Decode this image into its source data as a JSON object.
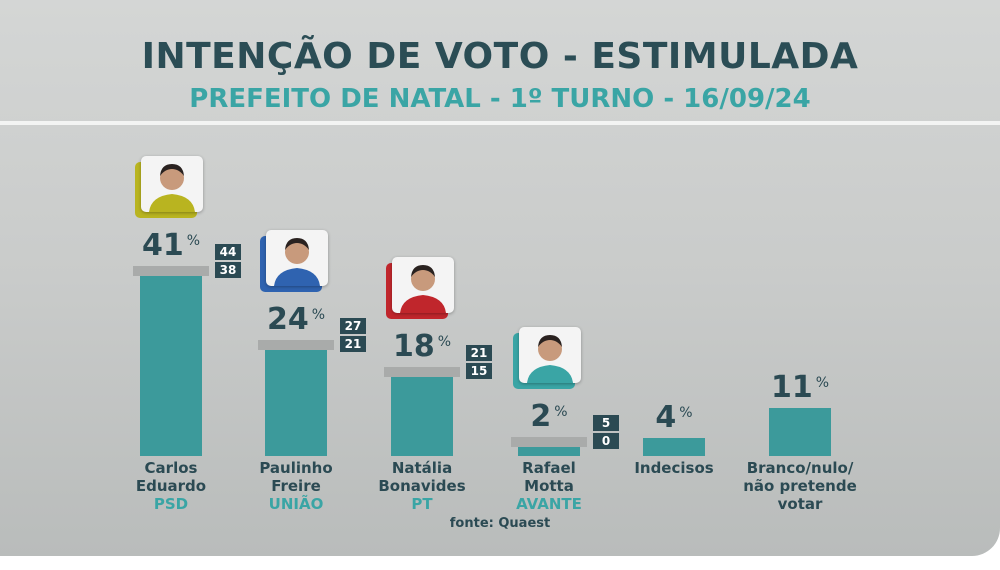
{
  "header": {
    "title": "INTENÇÃO DE VOTO - ESTIMULADA",
    "subtitle": "PREFEITO DE NATAL - 1º TURNO - 16/09/24"
  },
  "colors": {
    "bar": "#3c9a9b",
    "title": "#2b4d55",
    "subtitle": "#3aa5a5",
    "range_box": "#2b4a53"
  },
  "chart_data": {
    "type": "bar",
    "title": "INTENÇÃO DE VOTO - ESTIMULADA",
    "subtitle": "PREFEITO DE NATAL - 1º TURNO - 16/09/24",
    "categories": [
      "Carlos Eduardo",
      "Paulinho Freire",
      "Natália Bonavides",
      "Rafael Motta",
      "Indecisos",
      "Branco/nulo/ não pretende votar"
    ],
    "values": [
      41,
      24,
      18,
      2,
      4,
      11
    ],
    "unit": "%",
    "ylim": [
      0,
      45
    ],
    "grid": false,
    "bars": [
      {
        "line1": "Carlos",
        "line2": "Eduardo",
        "party": "PSD",
        "value": 41,
        "value_label": "41",
        "range": {
          "high": 44,
          "low": 38
        },
        "photo": "candidate-photo-carlos-eduardo",
        "photo_accent": "#b9b420"
      },
      {
        "line1": "Paulinho",
        "line2": "Freire",
        "party": "UNIÃO",
        "value": 24,
        "value_label": "24",
        "range": {
          "high": 27,
          "low": 21
        },
        "photo": "candidate-photo-paulinho-freire",
        "photo_accent": "#2f63b0"
      },
      {
        "line1": "Natália",
        "line2": "Bonavides",
        "party": "PT",
        "value": 18,
        "value_label": "18",
        "range": {
          "high": 21,
          "low": 15
        },
        "photo": "candidate-photo-natalia-bonavides",
        "photo_accent": "#c0262c"
      },
      {
        "line1": "Rafael",
        "line2": "Motta",
        "party": "AVANTE",
        "value": 2,
        "value_label": "2",
        "range": {
          "high": 5,
          "low": 0
        },
        "photo": "candidate-photo-rafael-motta",
        "photo_accent": "#3aa5a5"
      },
      {
        "line1": "Indecisos",
        "line2": "",
        "party": "",
        "value": 4,
        "value_label": "4",
        "range": null,
        "photo": null,
        "photo_accent": null
      },
      {
        "line1": "Branco/nulo/",
        "line2": "não pretende votar",
        "party": "",
        "value": 11,
        "value_label": "11",
        "range": null,
        "photo": null,
        "photo_accent": null
      }
    ],
    "source": "fonte: Quaest"
  }
}
